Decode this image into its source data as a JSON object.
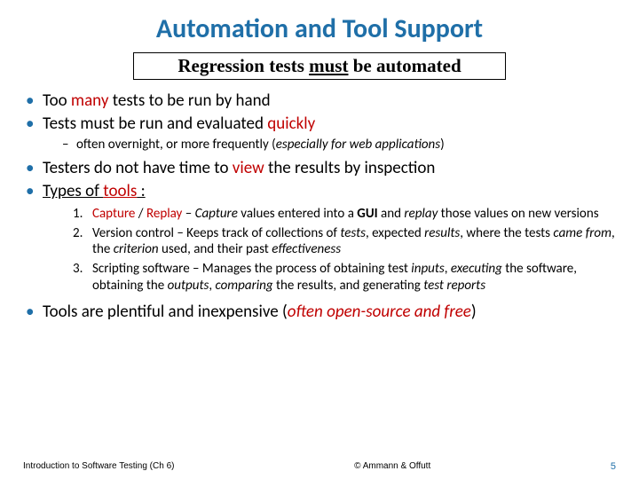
{
  "title": "Automation and Tool Support",
  "boxed": {
    "pre": "Regression tests ",
    "must": "must",
    "post": " be automated"
  },
  "b1": {
    "a": "Too ",
    "b": "many",
    "c": " tests to be run by hand"
  },
  "b2": {
    "a": "Tests must be run and evaluated ",
    "b": "quickly"
  },
  "b2s": {
    "a": "often overnight, or more frequently (",
    "b": "especially for web applications",
    "c": ")"
  },
  "b3": {
    "a": "Testers do not have time to ",
    "b": "view",
    "c": " the results by inspection"
  },
  "b4": {
    "a": "Types of ",
    "b": "tools",
    "c": " :"
  },
  "n1": {
    "n": "1.",
    "a": "Capture",
    "b": " / ",
    "c": "Replay",
    "d": " – ",
    "e": "Capture",
    "f": " values entered into a ",
    "g": "GUI",
    "h": " and ",
    "i": "replay",
    "j": " those values on new versions"
  },
  "n2": {
    "n": "2.",
    "a": "Version control – Keeps track of collections of ",
    "b": "tests",
    "c": ", expected ",
    "d": "results",
    "e": ", where the tests ",
    "f": "came from",
    "g": ", the ",
    "h": "criterion",
    "i": " used, and their past ",
    "j": "effectiveness"
  },
  "n3": {
    "n": "3.",
    "a": "Scripting software – Manages the process of obtaining test ",
    "b": "inputs",
    "c": ", ",
    "d": "executing",
    "e": " the software, obtaining the ",
    "f": "outputs",
    "g": ", ",
    "h": "comparing",
    "i": " the results, and generating ",
    "j": "test reports"
  },
  "b5": {
    "a": "Tools are plentiful and inexpensive (",
    "b": "often open-source and free",
    "c": ")"
  },
  "footer": {
    "left": "Introduction to Software Testing  (Ch 6)",
    "center": "© Ammann & Offutt",
    "page": "5"
  },
  "colors": {
    "accent": "#1f6fa8",
    "emph": "#c00000",
    "text": "#000000",
    "bg": "#ffffff"
  },
  "fonts": {
    "title_pt": 30,
    "body_pt": 19,
    "sub_pt": 15,
    "footer_pt": 10
  }
}
